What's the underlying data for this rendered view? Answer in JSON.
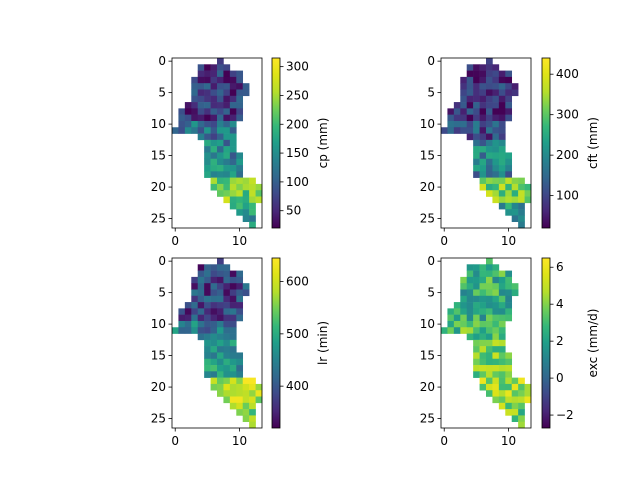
{
  "figure": {
    "subplots": [
      {
        "colorbar_label": "cp (mm)",
        "colorbar_ticks": [
          50,
          100,
          150,
          200,
          250,
          300
        ],
        "colorbar_range": [
          20,
          315
        ]
      },
      {
        "colorbar_label": "cft (mm)",
        "colorbar_ticks": [
          100,
          200,
          300,
          400
        ],
        "colorbar_range": [
          20,
          440
        ]
      },
      {
        "colorbar_label": "lr (min)",
        "colorbar_ticks": [
          400,
          500,
          600
        ],
        "colorbar_range": [
          320,
          645
        ]
      },
      {
        "colorbar_label": "exc (mm/d)",
        "colorbar_ticks": [
          -2,
          0,
          2,
          4,
          6
        ],
        "colorbar_range": [
          -2.7,
          6.5
        ]
      }
    ]
  },
  "chart_data": [
    {
      "type": "heatmap",
      "title": "",
      "xlabel": "",
      "ylabel": "",
      "x_ticks": [
        0,
        10
      ],
      "y_ticks": [
        0,
        5,
        10,
        15,
        20,
        25
      ],
      "xlim": [
        -0.5,
        13.5
      ],
      "ylim": [
        26.5,
        -0.5
      ],
      "colormap": "viridis",
      "colorbar_label": "cp (mm)",
      "vmin": 20,
      "vmax": 315,
      "grid_rows": 27,
      "grid_cols": 14,
      "row_extents": [
        [
          7,
          7
        ],
        [
          4,
          8
        ],
        [
          4,
          10
        ],
        [
          3,
          10
        ],
        [
          3,
          11
        ],
        [
          3,
          11
        ],
        [
          3,
          10
        ],
        [
          2,
          10
        ],
        [
          1,
          10
        ],
        [
          1,
          10
        ],
        [
          1,
          9
        ],
        [
          0,
          9
        ],
        [
          4,
          9
        ],
        [
          5,
          9
        ],
        [
          5,
          9
        ],
        [
          5,
          10
        ],
        [
          5,
          10
        ],
        [
          5,
          10
        ],
        [
          5,
          10
        ],
        [
          6,
          12
        ],
        [
          6,
          13
        ],
        [
          7,
          13
        ],
        [
          8,
          13
        ],
        [
          9,
          12
        ],
        [
          10,
          12
        ],
        [
          11,
          12
        ],
        [
          12,
          12
        ]
      ],
      "zones": [
        {
          "rows": [
            0,
            9
          ],
          "value": 60
        },
        {
          "rows": [
            10,
            12
          ],
          "value": 120
        },
        {
          "rows": [
            13,
            18
          ],
          "value": 140
        },
        {
          "rows": [
            19,
            22
          ],
          "value": 230
        },
        {
          "rows": [
            23,
            26
          ],
          "value": 160
        }
      ]
    },
    {
      "type": "heatmap",
      "title": "",
      "xlabel": "",
      "ylabel": "",
      "x_ticks": [
        0,
        10
      ],
      "y_ticks": [
        0,
        5,
        10,
        15,
        20,
        25
      ],
      "xlim": [
        -0.5,
        13.5
      ],
      "ylim": [
        26.5,
        -0.5
      ],
      "colormap": "viridis",
      "colorbar_label": "cft (mm)",
      "vmin": 20,
      "vmax": 440,
      "grid_rows": 27,
      "grid_cols": 14,
      "row_extents": [
        [
          7,
          7
        ],
        [
          4,
          8
        ],
        [
          4,
          10
        ],
        [
          3,
          10
        ],
        [
          3,
          11
        ],
        [
          3,
          11
        ],
        [
          3,
          10
        ],
        [
          2,
          10
        ],
        [
          1,
          10
        ],
        [
          1,
          10
        ],
        [
          1,
          9
        ],
        [
          0,
          9
        ],
        [
          4,
          9
        ],
        [
          5,
          9
        ],
        [
          5,
          9
        ],
        [
          5,
          10
        ],
        [
          5,
          10
        ],
        [
          5,
          10
        ],
        [
          5,
          10
        ],
        [
          6,
          12
        ],
        [
          6,
          13
        ],
        [
          7,
          13
        ],
        [
          8,
          13
        ],
        [
          9,
          12
        ],
        [
          10,
          12
        ],
        [
          11,
          12
        ],
        [
          12,
          12
        ]
      ],
      "zones": [
        {
          "rows": [
            0,
            9
          ],
          "value": 70
        },
        {
          "rows": [
            10,
            12
          ],
          "value": 110
        },
        {
          "rows": [
            13,
            18
          ],
          "value": 180
        },
        {
          "rows": [
            19,
            22
          ],
          "value": 320
        },
        {
          "rows": [
            23,
            26
          ],
          "value": 200
        }
      ]
    },
    {
      "type": "heatmap",
      "title": "",
      "xlabel": "",
      "ylabel": "",
      "x_ticks": [
        0,
        10
      ],
      "y_ticks": [
        0,
        5,
        10,
        15,
        20,
        25
      ],
      "xlim": [
        -0.5,
        13.5
      ],
      "ylim": [
        26.5,
        -0.5
      ],
      "colormap": "viridis",
      "colorbar_label": "lr (min)",
      "vmin": 320,
      "vmax": 645,
      "grid_rows": 27,
      "grid_cols": 14,
      "row_extents": [
        [
          7,
          7
        ],
        [
          4,
          8
        ],
        [
          4,
          10
        ],
        [
          3,
          10
        ],
        [
          3,
          11
        ],
        [
          3,
          11
        ],
        [
          3,
          10
        ],
        [
          2,
          10
        ],
        [
          1,
          10
        ],
        [
          1,
          10
        ],
        [
          1,
          9
        ],
        [
          0,
          9
        ],
        [
          4,
          9
        ],
        [
          5,
          9
        ],
        [
          5,
          9
        ],
        [
          5,
          10
        ],
        [
          5,
          10
        ],
        [
          5,
          10
        ],
        [
          5,
          10
        ],
        [
          6,
          12
        ],
        [
          6,
          13
        ],
        [
          7,
          13
        ],
        [
          8,
          13
        ],
        [
          9,
          12
        ],
        [
          10,
          12
        ],
        [
          11,
          12
        ],
        [
          12,
          12
        ]
      ],
      "zones": [
        {
          "rows": [
            0,
            9
          ],
          "value": 380
        },
        {
          "rows": [
            10,
            12
          ],
          "value": 440
        },
        {
          "rows": [
            13,
            18
          ],
          "value": 480
        },
        {
          "rows": [
            19,
            22
          ],
          "value": 590
        },
        {
          "rows": [
            23,
            26
          ],
          "value": 560
        }
      ]
    },
    {
      "type": "heatmap",
      "title": "",
      "xlabel": "",
      "ylabel": "",
      "x_ticks": [
        0,
        10
      ],
      "y_ticks": [
        0,
        5,
        10,
        15,
        20,
        25
      ],
      "xlim": [
        -0.5,
        13.5
      ],
      "ylim": [
        26.5,
        -0.5
      ],
      "colormap": "viridis",
      "colorbar_label": "exc (mm/d)",
      "vmin": -2.7,
      "vmax": 6.5,
      "grid_rows": 27,
      "grid_cols": 14,
      "row_extents": [
        [
          7,
          7
        ],
        [
          4,
          8
        ],
        [
          4,
          10
        ],
        [
          3,
          10
        ],
        [
          3,
          11
        ],
        [
          3,
          11
        ],
        [
          3,
          10
        ],
        [
          2,
          10
        ],
        [
          1,
          10
        ],
        [
          1,
          10
        ],
        [
          1,
          9
        ],
        [
          0,
          9
        ],
        [
          4,
          9
        ],
        [
          5,
          9
        ],
        [
          5,
          9
        ],
        [
          5,
          10
        ],
        [
          5,
          10
        ],
        [
          5,
          10
        ],
        [
          5,
          10
        ],
        [
          6,
          12
        ],
        [
          6,
          13
        ],
        [
          7,
          13
        ],
        [
          8,
          13
        ],
        [
          9,
          12
        ],
        [
          10,
          12
        ],
        [
          11,
          12
        ],
        [
          12,
          12
        ]
      ],
      "zones": [
        {
          "rows": [
            0,
            9
          ],
          "value": 2.5
        },
        {
          "rows": [
            10,
            12
          ],
          "value": 3.2
        },
        {
          "rows": [
            13,
            18
          ],
          "value": 4.0
        },
        {
          "rows": [
            19,
            22
          ],
          "value": 4.5
        },
        {
          "rows": [
            23,
            26
          ],
          "value": 3.8
        }
      ]
    }
  ]
}
